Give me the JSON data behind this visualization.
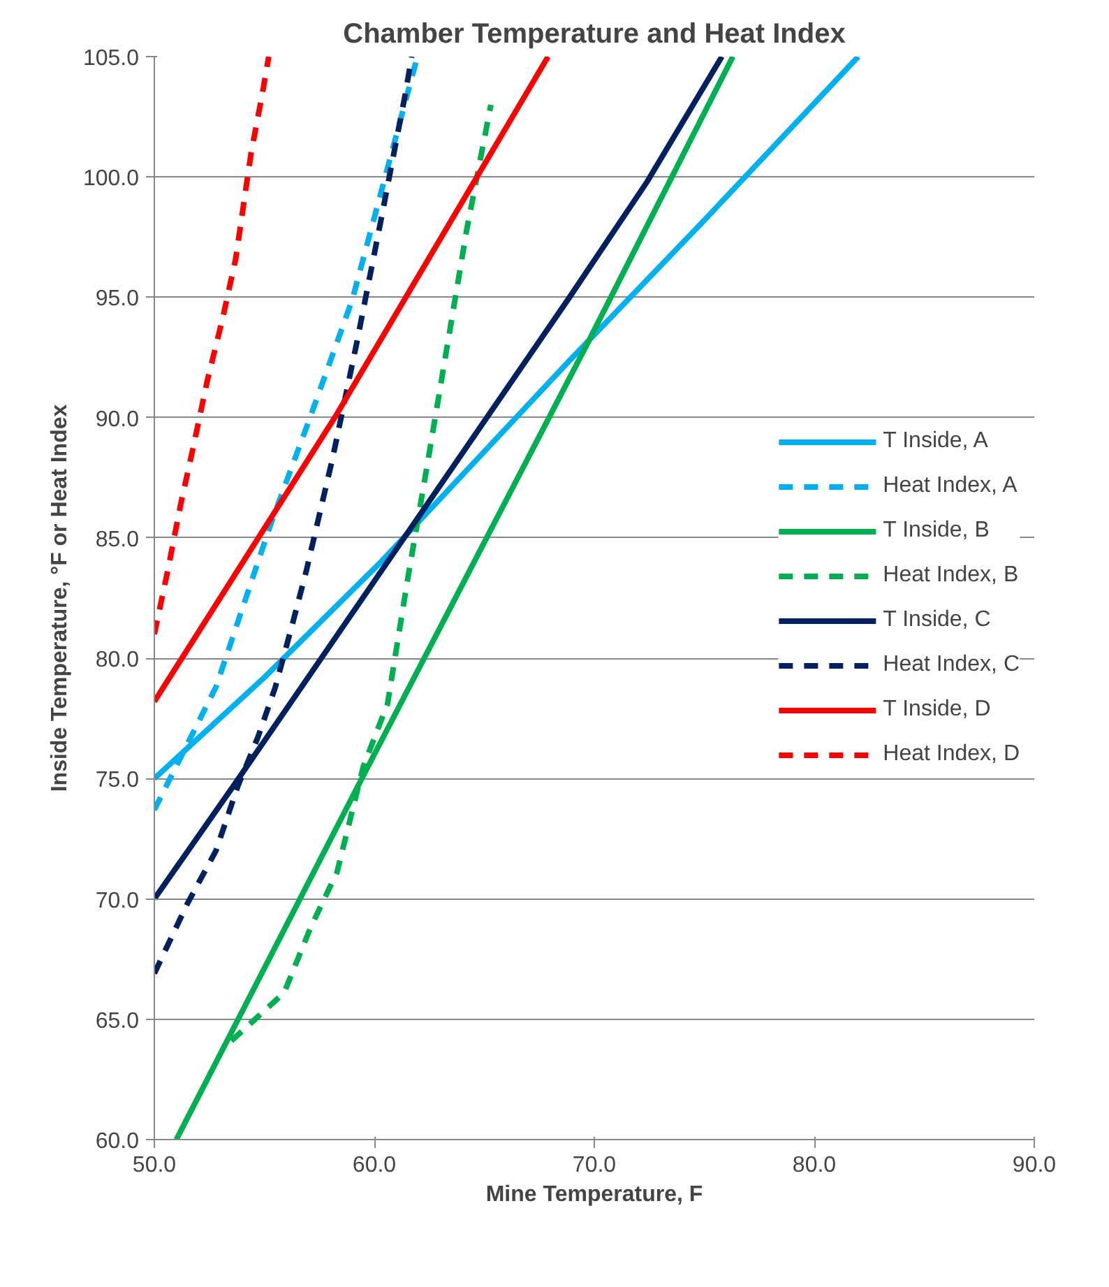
{
  "chart_data": {
    "type": "line",
    "title": "Chamber Temperature and Heat Index",
    "xlabel": "Mine Temperature, F",
    "ylabel": "Inside Temperature, °F or Heat Index",
    "xlim": [
      50,
      90
    ],
    "ylim": [
      60,
      105
    ],
    "xticks": [
      {
        "value": 50,
        "label": "50.0"
      },
      {
        "value": 60,
        "label": "60.0"
      },
      {
        "value": 70,
        "label": "70.0"
      },
      {
        "value": 80,
        "label": "80.0"
      },
      {
        "value": 90,
        "label": "90.0"
      }
    ],
    "yticks": [
      {
        "value": 60,
        "label": "60.0"
      },
      {
        "value": 65,
        "label": "65.0"
      },
      {
        "value": 70,
        "label": "70.0"
      },
      {
        "value": 75,
        "label": "75.0"
      },
      {
        "value": 80,
        "label": "80.0"
      },
      {
        "value": 85,
        "label": "85.0"
      },
      {
        "value": 90,
        "label": "90.0"
      },
      {
        "value": 95,
        "label": "95.0"
      },
      {
        "value": 100,
        "label": "100.0"
      },
      {
        "value": 105,
        "label": "105.0"
      }
    ],
    "grid": "y",
    "legend": "right",
    "marker": "none",
    "series": [
      {
        "name": "T Inside, A",
        "color": "#00b0f0",
        "line_style": "solid",
        "x": [
          50,
          55,
          60.3,
          68.8,
          75,
          82
        ],
        "values": [
          75,
          79.2,
          84.0,
          92.3,
          98.2,
          105
        ]
      },
      {
        "name": "Heat Index, A",
        "color": "#00b0f0",
        "line_style": "dashed",
        "x": [
          50,
          52.8,
          55.3,
          57,
          59,
          61.9
        ],
        "values": [
          73.7,
          78.8,
          85.6,
          89.8,
          94.9,
          104.8
        ]
      },
      {
        "name": "T Inside, B",
        "color": "#00b050",
        "line_style": "solid",
        "x": [
          51,
          59.6,
          69.7,
          76.3
        ],
        "values": [
          60,
          75.3,
          93.1,
          105
        ]
      },
      {
        "name": "Heat Index, B",
        "color": "#00b050",
        "line_style": "dashed",
        "x": [
          53.5,
          55.9,
          57.1,
          58.3,
          59.5,
          60.6,
          61.5,
          62.4,
          64.2,
          65.3
        ],
        "values": [
          64.1,
          66.1,
          68.8,
          71.1,
          75.5,
          78.1,
          83.2,
          88.0,
          97.8,
          103.0
        ]
      },
      {
        "name": "T Inside, C",
        "color": "#002060",
        "line_style": "solid",
        "x": [
          50,
          53.6,
          60.6,
          68.8,
          72.4,
          75.8
        ],
        "values": [
          70,
          74.7,
          84.0,
          94.9,
          99.8,
          105
        ]
      },
      {
        "name": "Heat Index, C",
        "color": "#002060",
        "line_style": "dashed",
        "x": [
          50,
          51.5,
          52.8,
          53.8,
          54.7,
          55.5,
          56.3,
          56.9,
          58.1,
          59.2,
          60.3,
          61.4,
          61.7
        ],
        "values": [
          66.9,
          69.8,
          72.0,
          74.7,
          76.7,
          78.8,
          81.5,
          83.6,
          88.3,
          93.1,
          98.2,
          103.4,
          105
        ]
      },
      {
        "name": "T Inside, D",
        "color": "#ff0000",
        "line_style": "solid",
        "x": [
          50,
          58.2,
          67.9
        ],
        "values": [
          78.2,
          90.0,
          105
        ]
      },
      {
        "name": "Heat Index, D",
        "color": "#ff0000",
        "line_style": "dashed",
        "x": [
          50,
          50.6,
          51.2,
          51.8,
          52.4,
          53.1,
          53.7,
          54.4,
          54.9,
          55.2
        ],
        "values": [
          81.0,
          83.6,
          86.4,
          88.9,
          91.5,
          94.1,
          96.6,
          101.0,
          103.4,
          105
        ]
      }
    ]
  }
}
